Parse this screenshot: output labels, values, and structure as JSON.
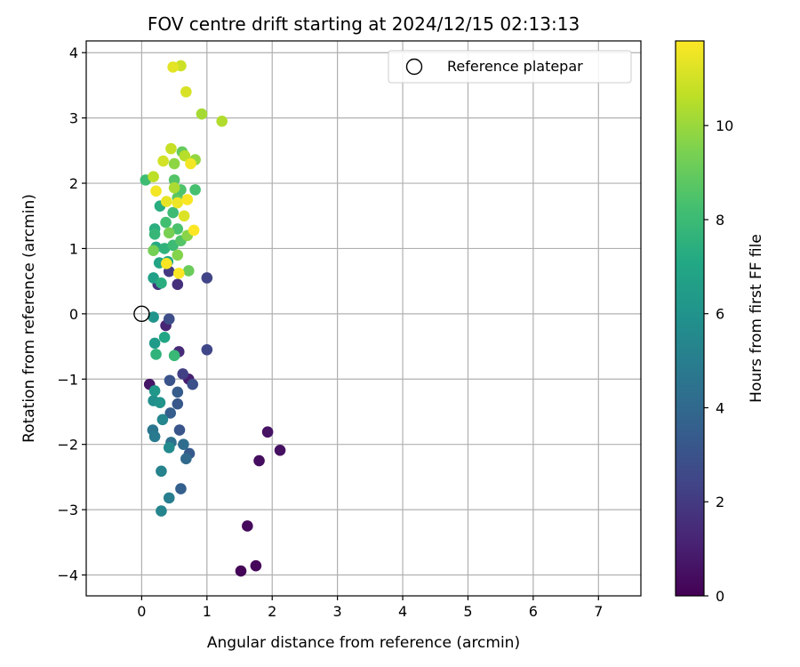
{
  "chart_data": {
    "type": "scatter",
    "title": "FOV centre drift starting at 2024/12/15 02:13:13",
    "xlabel": "Angular distance from reference (arcmin)",
    "ylabel": "Rotation from reference (arcmin)",
    "xlim": [
      -0.85,
      7.65
    ],
    "ylim": [
      -4.32,
      4.18
    ],
    "xticks": [
      0,
      1,
      2,
      3,
      4,
      5,
      6,
      7
    ],
    "yticks": [
      -4,
      -3,
      -2,
      -1,
      0,
      1,
      2,
      3,
      4
    ],
    "grid": true,
    "legend": {
      "location": "upper right",
      "entries": [
        "Reference platepar"
      ]
    },
    "colorbar": {
      "label": "Hours from first FF file",
      "range": [
        0,
        11.8
      ],
      "ticks": [
        0,
        2,
        4,
        6,
        8,
        10
      ],
      "colormap": "viridis"
    },
    "reference_point": {
      "x": 0,
      "y": 0,
      "label": "Reference platepar"
    },
    "points": [
      {
        "x": 1.52,
        "y": -3.94,
        "c": 0.1
      },
      {
        "x": 1.75,
        "y": -3.86,
        "c": 0.2
      },
      {
        "x": 1.62,
        "y": -3.25,
        "c": 0.3
      },
      {
        "x": 1.8,
        "y": -2.25,
        "c": 0.4
      },
      {
        "x": 2.12,
        "y": -2.09,
        "c": 0.5
      },
      {
        "x": 1.93,
        "y": -1.81,
        "c": 0.6
      },
      {
        "x": 0.12,
        "y": -1.08,
        "c": 0.7
      },
      {
        "x": 0.72,
        "y": -1.0,
        "c": 1.0
      },
      {
        "x": 0.37,
        "y": -0.18,
        "c": 1.2
      },
      {
        "x": 0.57,
        "y": -0.58,
        "c": 1.4
      },
      {
        "x": 0.55,
        "y": 0.45,
        "c": 1.6
      },
      {
        "x": 0.25,
        "y": 0.45,
        "c": 1.8
      },
      {
        "x": 0.42,
        "y": 0.65,
        "c": 2.0
      },
      {
        "x": 0.63,
        "y": -0.92,
        "c": 2.2
      },
      {
        "x": 1.0,
        "y": 0.55,
        "c": 2.4
      },
      {
        "x": 1.0,
        "y": -0.55,
        "c": 2.5
      },
      {
        "x": 0.42,
        "y": -0.08,
        "c": 2.8
      },
      {
        "x": 0.78,
        "y": -1.08,
        "c": 2.9
      },
      {
        "x": 0.43,
        "y": -1.02,
        "c": 3.0
      },
      {
        "x": 0.55,
        "y": -1.38,
        "c": 3.2
      },
      {
        "x": 0.55,
        "y": -1.2,
        "c": 3.4
      },
      {
        "x": 0.58,
        "y": -1.78,
        "c": 3.1
      },
      {
        "x": 0.44,
        "y": -1.52,
        "c": 3.5
      },
      {
        "x": 0.73,
        "y": -2.14,
        "c": 3.3
      },
      {
        "x": 0.6,
        "y": -2.68,
        "c": 3.6
      },
      {
        "x": 0.68,
        "y": -2.22,
        "c": 4.0
      },
      {
        "x": 0.64,
        "y": -2.0,
        "c": 4.2
      },
      {
        "x": 0.45,
        "y": -1.97,
        "c": 4.4
      },
      {
        "x": 0.17,
        "y": -1.78,
        "c": 4.6
      },
      {
        "x": 0.2,
        "y": -1.88,
        "c": 4.8
      },
      {
        "x": 0.42,
        "y": -2.82,
        "c": 5.0
      },
      {
        "x": 0.3,
        "y": -2.41,
        "c": 5.2
      },
      {
        "x": 0.32,
        "y": -1.62,
        "c": 5.4
      },
      {
        "x": 0.42,
        "y": -2.05,
        "c": 5.6
      },
      {
        "x": 0.18,
        "y": -1.33,
        "c": 5.8
      },
      {
        "x": 0.28,
        "y": -1.36,
        "c": 6.0
      },
      {
        "x": 0.2,
        "y": -1.18,
        "c": 6.2
      },
      {
        "x": 0.2,
        "y": -0.45,
        "c": 6.4
      },
      {
        "x": 0.18,
        "y": -0.05,
        "c": 6.1
      },
      {
        "x": 0.3,
        "y": -3.02,
        "c": 5.3
      },
      {
        "x": 0.35,
        "y": -0.36,
        "c": 7.0
      },
      {
        "x": 0.22,
        "y": -0.62,
        "c": 7.6
      },
      {
        "x": 0.5,
        "y": -0.64,
        "c": 7.9
      },
      {
        "x": 0.18,
        "y": 0.55,
        "c": 6.6
      },
      {
        "x": 0.3,
        "y": 0.47,
        "c": 7.4
      },
      {
        "x": 0.27,
        "y": 0.78,
        "c": 6.9
      },
      {
        "x": 0.22,
        "y": 1.02,
        "c": 7.2
      },
      {
        "x": 0.2,
        "y": 1.3,
        "c": 7.4
      },
      {
        "x": 0.2,
        "y": 1.22,
        "c": 7.8
      },
      {
        "x": 0.35,
        "y": 1.0,
        "c": 7.6
      },
      {
        "x": 0.4,
        "y": 0.8,
        "c": 7.1
      },
      {
        "x": 0.48,
        "y": 1.05,
        "c": 8.0
      },
      {
        "x": 0.55,
        "y": 1.3,
        "c": 8.4
      },
      {
        "x": 0.6,
        "y": 1.12,
        "c": 8.6
      },
      {
        "x": 0.28,
        "y": 1.65,
        "c": 7.3
      },
      {
        "x": 0.37,
        "y": 1.4,
        "c": 8.2
      },
      {
        "x": 0.48,
        "y": 1.55,
        "c": 8.0
      },
      {
        "x": 0.55,
        "y": 1.78,
        "c": 8.8
      },
      {
        "x": 0.6,
        "y": 1.9,
        "c": 8.5
      },
      {
        "x": 0.82,
        "y": 1.9,
        "c": 8.3
      },
      {
        "x": 0.06,
        "y": 2.05,
        "c": 8.1
      },
      {
        "x": 0.5,
        "y": 2.05,
        "c": 8.6
      },
      {
        "x": 0.62,
        "y": 2.48,
        "c": 9.0
      },
      {
        "x": 0.72,
        "y": 0.66,
        "c": 9.1
      },
      {
        "x": 0.18,
        "y": 0.97,
        "c": 9.3
      },
      {
        "x": 0.42,
        "y": 1.24,
        "c": 9.4
      },
      {
        "x": 0.55,
        "y": 0.9,
        "c": 9.6
      },
      {
        "x": 0.7,
        "y": 1.2,
        "c": 9.7
      },
      {
        "x": 0.5,
        "y": 2.3,
        "c": 9.8
      },
      {
        "x": 0.82,
        "y": 2.36,
        "c": 9.9
      },
      {
        "x": 0.92,
        "y": 3.06,
        "c": 10.2
      },
      {
        "x": 1.23,
        "y": 2.95,
        "c": 10.4
      },
      {
        "x": 0.66,
        "y": 2.42,
        "c": 10.5
      },
      {
        "x": 0.5,
        "y": 1.93,
        "c": 10.3
      },
      {
        "x": 0.18,
        "y": 2.1,
        "c": 10.6
      },
      {
        "x": 0.45,
        "y": 2.53,
        "c": 10.8
      },
      {
        "x": 0.68,
        "y": 3.4,
        "c": 11.1
      },
      {
        "x": 0.6,
        "y": 3.8,
        "c": 10.9
      },
      {
        "x": 0.48,
        "y": 3.78,
        "c": 11.3
      },
      {
        "x": 0.33,
        "y": 2.34,
        "c": 11.0
      },
      {
        "x": 0.65,
        "y": 1.5,
        "c": 11.2
      },
      {
        "x": 0.55,
        "y": 1.7,
        "c": 11.5
      },
      {
        "x": 0.38,
        "y": 1.72,
        "c": 11.4
      },
      {
        "x": 0.22,
        "y": 1.88,
        "c": 11.6
      },
      {
        "x": 0.7,
        "y": 1.75,
        "c": 11.7
      },
      {
        "x": 0.75,
        "y": 2.3,
        "c": 11.6
      },
      {
        "x": 0.8,
        "y": 1.28,
        "c": 11.8
      },
      {
        "x": 0.38,
        "y": 0.77,
        "c": 11.7
      },
      {
        "x": 0.57,
        "y": 0.62,
        "c": 11.8
      }
    ]
  }
}
